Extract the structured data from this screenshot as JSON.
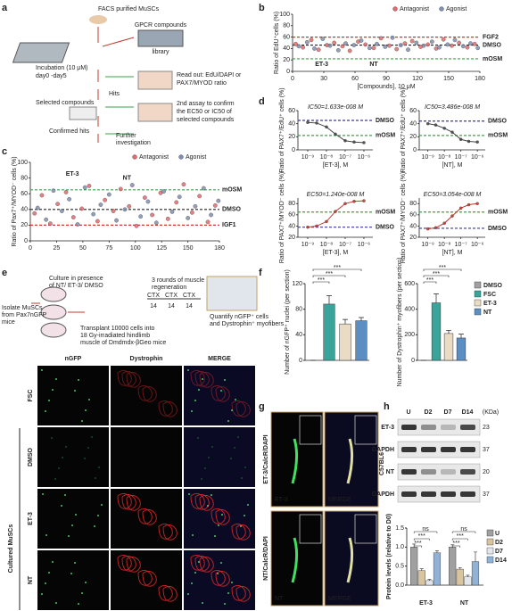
{
  "a": {
    "label": "a",
    "texts": [
      "FACS purified MuSCs",
      "GPCR compounds",
      "library",
      "Incubation (10 μM)",
      "day0 -day5",
      "Read out: EdU/DAPI or",
      "PAX7/MYOD ratio",
      "Hits",
      "Selected compounds",
      "2nd assay to confirm",
      "the EC50 or IC50 of",
      "selected compounds",
      "Confirmed hits",
      "Further",
      "investigation"
    ]
  },
  "b": {
    "label": "b",
    "chart": {
      "type": "scatter",
      "ylabel": "Ratio of EdU⁺cells (%)",
      "xlabel": "[Compounds], 10 μM",
      "xlim": [
        0,
        180
      ],
      "xticks": [
        0,
        30,
        60,
        90,
        120,
        150,
        180
      ],
      "ylim": [
        0,
        100
      ],
      "yticks": [
        0,
        20,
        40,
        60,
        80,
        100
      ],
      "series": [
        {
          "name": "Antagonist",
          "color": "#e06a6f",
          "x": [
            3,
            10,
            18,
            25,
            33,
            40,
            48,
            55,
            63,
            70,
            78,
            85,
            93,
            100,
            108,
            115,
            123,
            130,
            138,
            145,
            153,
            160,
            168,
            175
          ],
          "values": [
            48,
            42,
            55,
            38,
            46,
            50,
            44,
            36,
            52,
            47,
            41,
            58,
            45,
            39,
            49,
            53,
            43,
            47,
            40,
            56,
            45,
            50,
            42,
            48
          ]
        },
        {
          "name": "Agonist",
          "color": "#7f8fb0",
          "x": [
            6,
            14,
            21,
            29,
            36,
            44,
            51,
            59,
            66,
            74,
            81,
            89,
            96,
            104,
            111,
            119,
            126,
            134,
            141,
            149,
            156,
            164,
            171,
            178
          ],
          "values": [
            44,
            51,
            40,
            57,
            45,
            37,
            49,
            46,
            54,
            41,
            48,
            43,
            59,
            46,
            38,
            50,
            45,
            52,
            42,
            47,
            55,
            44,
            49,
            41
          ]
        }
      ],
      "ref_lines": [
        {
          "label": "FGF2",
          "value": 60,
          "color": "#d9302b"
        },
        {
          "label": "DMSO",
          "value": 46,
          "color": "#222222"
        },
        {
          "label": "mOSM",
          "value": 22,
          "color": "#3aa34a"
        }
      ],
      "annotations": [
        "ET-3",
        "NT"
      ]
    }
  },
  "c": {
    "label": "c",
    "chart": {
      "type": "scatter",
      "ylabel": "Ratio of Pax7⁺/MYOD⁻ cells (%)",
      "xlim": [
        0,
        180
      ],
      "xticks": [
        0,
        25,
        50,
        75,
        100,
        125,
        150,
        180
      ],
      "ylim": [
        0,
        100
      ],
      "yticks": [
        0,
        20,
        40,
        60,
        80,
        100
      ],
      "series": [
        {
          "name": "Antagonist",
          "color": "#e06a6f",
          "x": [
            4,
            11,
            19,
            26,
            34,
            41,
            49,
            56,
            64,
            71,
            79,
            86,
            94,
            101,
            109,
            116,
            124,
            131,
            139,
            146,
            154,
            161,
            169,
            176
          ],
          "values": [
            35,
            58,
            22,
            47,
            62,
            30,
            41,
            70,
            25,
            52,
            38,
            66,
            44,
            19,
            55,
            33,
            61,
            28,
            49,
            72,
            36,
            57,
            24,
            45
          ]
        },
        {
          "name": "Agonist",
          "color": "#7f8fb0",
          "x": [
            7,
            15,
            22,
            30,
            37,
            45,
            52,
            60,
            67,
            75,
            82,
            90,
            97,
            105,
            112,
            120,
            127,
            135,
            142,
            150,
            157,
            165,
            172,
            179
          ],
          "values": [
            42,
            27,
            64,
            38,
            53,
            21,
            68,
            34,
            46,
            59,
            26,
            40,
            71,
            31,
            50,
            23,
            63,
            37,
            56,
            29,
            44,
            67,
            33,
            51
          ]
        }
      ],
      "ref_lines": [
        {
          "label": "mOSM",
          "value": 65,
          "color": "#3aa34a"
        },
        {
          "label": "DMSO",
          "value": 40,
          "color": "#222222"
        },
        {
          "label": "IGF1",
          "value": 20,
          "color": "#d9302b"
        }
      ],
      "annotations": [
        "ET-3",
        "NT"
      ]
    }
  },
  "d": {
    "label": "d",
    "charts": [
      {
        "type": "line",
        "note": "IC50=1.633e-008 M",
        "ylabel": "Ratio of PAX7⁺/EdU⁺ cells (%)",
        "xlabel": "[ET-3], M",
        "xlog": true,
        "xlim": [
          3e-10,
          3e-06
        ],
        "xticks": [
          {
            "value": 1e-09,
            "label": "10⁻⁹"
          },
          {
            "value": 1e-08,
            "label": "10⁻⁸"
          },
          {
            "value": 1e-07,
            "label": "10⁻⁷"
          },
          {
            "value": 1e-06,
            "label": "10⁻⁶"
          }
        ],
        "ylim": [
          0,
          60
        ],
        "yticks": [
          0,
          20,
          40,
          60
        ],
        "series": [
          {
            "color": "#444444",
            "x": [
              1e-09,
              3e-09,
              1e-08,
              3e-08,
              1e-07,
              3e-07,
              1e-06
            ],
            "values": [
              42,
              41,
              35,
              24,
              14,
              12,
              11
            ]
          }
        ],
        "ref_lines": [
          {
            "label": "DMSO",
            "value": 45,
            "color": "#3a3aa0"
          },
          {
            "label": "mOSM",
            "value": 22,
            "color": "#3aa34a"
          }
        ]
      },
      {
        "type": "line",
        "note": "IC50=3.486e-008 M",
        "ylabel": "Ratio of PAX7⁺/EdU⁺ cells (%)",
        "xlabel": "[NT], M",
        "xlog": true,
        "xlim": [
          3e-10,
          3e-06
        ],
        "xticks": [
          {
            "value": 1e-09,
            "label": "10⁻⁹"
          },
          {
            "value": 1e-08,
            "label": "10⁻⁸"
          },
          {
            "value": 1e-07,
            "label": "10⁻⁷"
          },
          {
            "value": 1e-06,
            "label": "10⁻⁶"
          }
        ],
        "ylim": [
          0,
          60
        ],
        "yticks": [
          0,
          20,
          40,
          60
        ],
        "series": [
          {
            "color": "#444444",
            "x": [
              1e-09,
              3e-09,
              1e-08,
              3e-08,
              1e-07,
              3e-07,
              1e-06
            ],
            "values": [
              40,
              38,
              33,
              27,
              16,
              13,
              12
            ]
          }
        ],
        "ref_lines": [
          {
            "label": "DMSO",
            "value": 44,
            "color": "#3a3aa0"
          },
          {
            "label": "mOSM",
            "value": 22,
            "color": "#3aa34a"
          }
        ]
      },
      {
        "type": "line",
        "note": "EC50=1.240e-008 M",
        "ylabel": "Ratio of PAX7⁺/MYOD⁻ cells (%)",
        "xlabel": "[ET-3], M",
        "xlog": true,
        "xlim": [
          3e-10,
          3e-06
        ],
        "xticks": [
          {
            "value": 1e-09,
            "label": "10⁻⁹"
          },
          {
            "value": 1e-08,
            "label": "10⁻⁸"
          },
          {
            "value": 1e-07,
            "label": "10⁻⁷"
          },
          {
            "value": 1e-06,
            "label": "10⁻⁶"
          }
        ],
        "ylim": [
          20,
          90
        ],
        "yticks": [
          20,
          40,
          60,
          80
        ],
        "series": [
          {
            "color": "#c0392b",
            "x": [
              1e-09,
              3e-09,
              1e-08,
              3e-08,
              1e-07,
              3e-07,
              1e-06
            ],
            "values": [
              38,
              40,
              48,
              66,
              80,
              84,
              85
            ]
          }
        ],
        "ref_lines": [
          {
            "label": "mOSM",
            "value": 65,
            "color": "#3aa34a"
          },
          {
            "label": "DMSO",
            "value": 38,
            "color": "#3a3aa0"
          }
        ]
      },
      {
        "type": "line",
        "note": "EC50=3.054e-008 M",
        "ylabel": "Ratio of PAX7⁺/MYOD⁻ cells (%)",
        "xlabel": "[NT], M",
        "xlog": true,
        "xlim": [
          3e-10,
          3e-06
        ],
        "xticks": [
          {
            "value": 1e-09,
            "label": "10⁻⁹"
          },
          {
            "value": 1e-08,
            "label": "10⁻⁸"
          },
          {
            "value": 1e-07,
            "label": "10⁻⁷"
          },
          {
            "value": 1e-06,
            "label": "10⁻⁶"
          }
        ],
        "ylim": [
          20,
          90
        ],
        "yticks": [
          20,
          40,
          60,
          80
        ],
        "series": [
          {
            "color": "#c0392b",
            "x": [
              1e-09,
              3e-09,
              1e-08,
              3e-08,
              1e-07,
              3e-07,
              1e-06
            ],
            "values": [
              35,
              37,
              45,
              58,
              72,
              78,
              80
            ]
          }
        ],
        "ref_lines": [
          {
            "label": "mOSM",
            "value": 65,
            "color": "#3aa34a"
          },
          {
            "label": "DMSO",
            "value": 36,
            "color": "#3a3aa0"
          }
        ]
      }
    ]
  },
  "e": {
    "label": "e",
    "texts": [
      "Culture in presence",
      "of NT/ ET-3/ DMSO",
      "Isolate MuSCs",
      "from Pax7nGFP",
      "mice",
      "Transplant 10000 cells into",
      "18 Gy-irradiated hindlimb",
      "muscle of Dmdmdx-βGeo mice",
      "3 rounds of muscle",
      "regeneration",
      "Quantify nGFP⁺ cells",
      "and Dystrophin⁺ myofibers"
    ],
    "ctx": [
      "CTX",
      "CTX",
      "CTX"
    ],
    "days": [
      "14",
      "14",
      "14"
    ],
    "columns": [
      "nGFP",
      "Dystrophin",
      "MERGE"
    ],
    "rows": [
      "FSC",
      "DMSO",
      "ET-3",
      "NT"
    ],
    "group": "Cultured MuSCs"
  },
  "f": {
    "label": "f",
    "categories": [
      "DMSO",
      "FSC",
      "ET-3",
      "NT"
    ],
    "colors": [
      "#a0a0a0",
      "#3aa39a",
      "#eadcc4",
      "#5b8fc4"
    ],
    "charts": [
      {
        "ylabel": "Number of nGFP⁺ nuclei (per section)",
        "ylim": [
          0,
          120
        ],
        "yticks": [
          0,
          40,
          80,
          120
        ],
        "values": [
          0,
          88,
          57,
          62
        ],
        "errors": [
          0,
          13,
          7,
          5
        ],
        "sig": [
          "***",
          "***",
          "***"
        ]
      },
      {
        "ylabel": "Number of Dystrophin⁺ myofibers (per section)",
        "ylim": [
          0,
          600
        ],
        "yticks": [
          0,
          200,
          400,
          600
        ],
        "values": [
          0,
          450,
          210,
          175
        ],
        "errors": [
          0,
          70,
          25,
          30
        ],
        "sig": [
          "***",
          "***",
          "***"
        ]
      }
    ]
  },
  "g": {
    "label": "g",
    "rows": [
      {
        "stain": "ET-3/CalcR/DAPI",
        "left": "ET-3",
        "right": "MERGE"
      },
      {
        "stain": "NT/CalcR/DAPI",
        "left": "NT",
        "right": "MERGE"
      }
    ],
    "strain": "C57BL6"
  },
  "h": {
    "label": "h",
    "lanes": [
      "U",
      "D2",
      "D7",
      "D14"
    ],
    "unit": "(KDa)",
    "blots": [
      {
        "name": "ET-3",
        "kda": "23"
      },
      {
        "name": "GAPDH",
        "kda": "37"
      },
      {
        "name": "NT",
        "kda": "20"
      },
      {
        "name": "GAPDH",
        "kda": "37"
      }
    ],
    "chart": {
      "ylabel": "Protein levels (relative to D0)",
      "ylim": [
        0,
        1.5
      ],
      "yticks": [
        {
          "value": 0,
          "label": "0.0"
        },
        {
          "value": 0.5,
          "label": "0.5"
        },
        {
          "value": 1,
          "label": "1.0"
        },
        {
          "value": 1.5,
          "label": "1.5"
        }
      ],
      "groups": [
        "ET-3",
        "NT"
      ],
      "series": [
        {
          "name": "U",
          "color": "#a0a0a0",
          "values": [
            1.0,
            1.0
          ],
          "errors": [
            0.08,
            0.06
          ]
        },
        {
          "name": "D2",
          "color": "#d9c4a0",
          "values": [
            0.38,
            0.42
          ],
          "errors": [
            0.05,
            0.04
          ]
        },
        {
          "name": "D7",
          "color": "#e3e6ea",
          "values": [
            0.12,
            0.22
          ],
          "errors": [
            0.03,
            0.04
          ]
        },
        {
          "name": "D14",
          "color": "#8fb2d6",
          "values": [
            0.85,
            0.62
          ],
          "errors": [
            0.05,
            0.25
          ]
        }
      ],
      "sig": [
        "ns",
        "***",
        "***",
        "ns",
        "***",
        "***"
      ]
    }
  }
}
